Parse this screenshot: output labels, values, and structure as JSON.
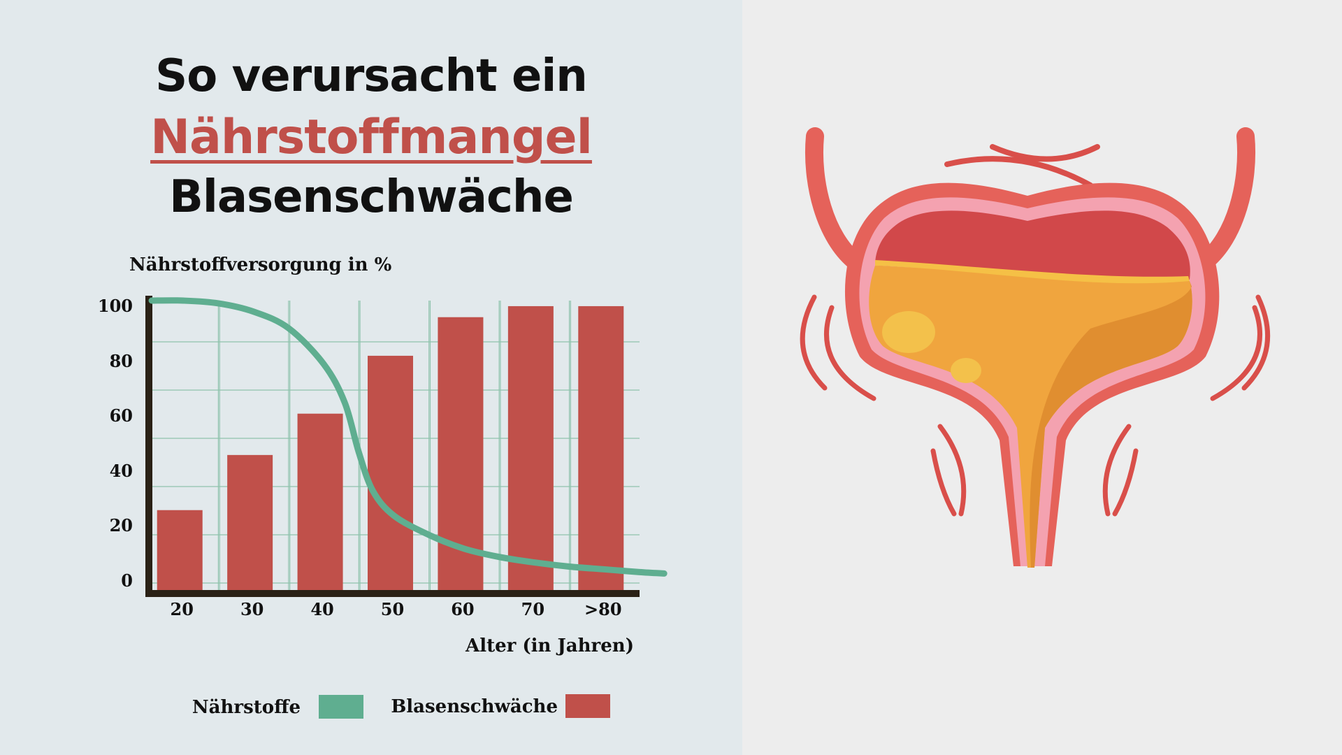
{
  "title": {
    "line1": "So verursacht ein",
    "line2": "Nährstoffmangel",
    "line3": "Blasenschwäche"
  },
  "colors": {
    "bars": "#c0504a",
    "curve": "#5fae90",
    "axis": "#2a2116",
    "grid": "#8fc3ad"
  },
  "chart_data": {
    "type": "bar",
    "ylabel": "Nährstoffversorgung in %",
    "xlabel": "Alter (in Jahren)",
    "ylim": [
      0,
      105
    ],
    "y_ticks": [
      "100",
      "80",
      "60",
      "40",
      "20",
      "0"
    ],
    "y_tick_values": [
      100,
      80,
      60,
      40,
      20,
      0
    ],
    "categories": [
      "20",
      "30",
      "40",
      "50",
      "60",
      "70",
      ">80"
    ],
    "grid": true,
    "series": [
      {
        "name": "Blasenschwäche",
        "type": "bar",
        "values": [
          30,
          50,
          65,
          86,
          100,
          104,
          104
        ]
      },
      {
        "name": "Nährstoffe",
        "type": "line",
        "x": [
          15.5,
          20,
          25,
          30,
          35,
          40,
          43,
          45,
          47,
          50,
          55,
          60,
          65,
          70,
          75,
          80,
          85,
          88.5
        ],
        "y": [
          105,
          105,
          104,
          101,
          95,
          82,
          68,
          50,
          36,
          27,
          20,
          15,
          12,
          10,
          8.5,
          7.5,
          6.5,
          6
        ]
      }
    ],
    "legend": {
      "position": "bottom",
      "items": [
        {
          "label": "Nährstoffe",
          "color": "#5fae90"
        },
        {
          "label": "Blasenschwäche",
          "color": "#c0504a"
        }
      ]
    }
  },
  "illustration": {
    "icon": "bladder-illustration-icon"
  }
}
